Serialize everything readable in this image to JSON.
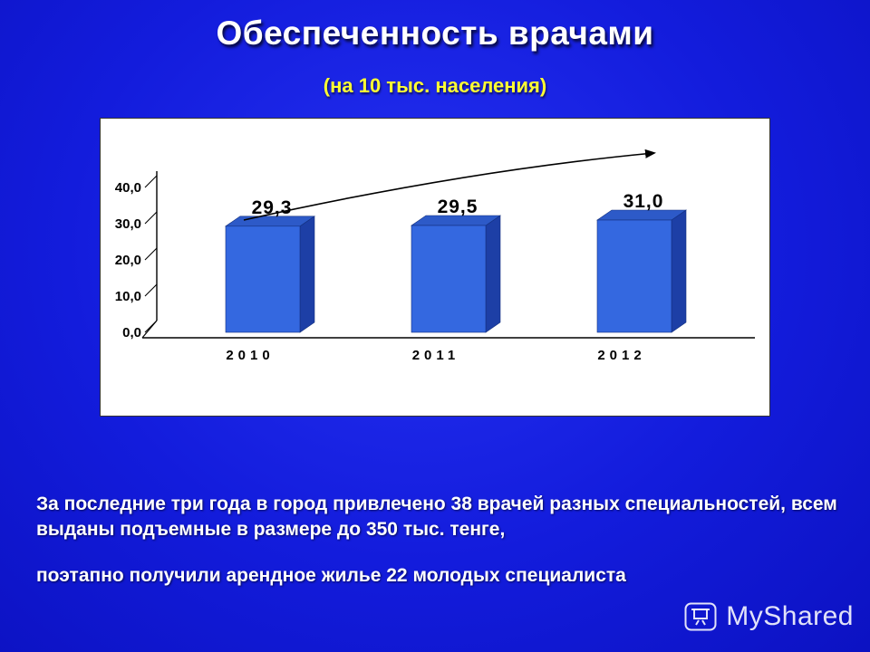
{
  "slide": {
    "title": "Обеспеченность врачами",
    "subtitle": "(на 10 тыс. населения)",
    "body": {
      "paragraph1": "За последние три года в город привлечено 38 врачей разных специальностей, всем выданы подъемные в размере до 350 тыс. тенге,",
      "paragraph2": "поэтапно получили арендное жилье 22 молодых специалиста"
    }
  },
  "chart_data": {
    "type": "bar",
    "style": "3d-column",
    "title": "",
    "xlabel": "",
    "ylabel": "",
    "categories": [
      "2010",
      "2011",
      "2012"
    ],
    "values": [
      29.3,
      29.5,
      31.0
    ],
    "data_labels": [
      "29,3",
      "29,5",
      "31,0"
    ],
    "y_ticks": [
      {
        "label": "40,0",
        "value": 40
      },
      {
        "label": "30,0",
        "value": 30
      },
      {
        "label": "20,0",
        "value": 20
      },
      {
        "label": "10,0",
        "value": 10
      },
      {
        "label": "0,0",
        "value": 0
      }
    ],
    "ylim": [
      0,
      40
    ],
    "grid": false,
    "legend": false,
    "annotations": [
      {
        "type": "trend-arrow",
        "direction": "up-right"
      }
    ],
    "colors": {
      "bar_front": "#3468e0",
      "bar_side": "#1d3fa6",
      "bar_top": "#2d5ac8",
      "bar_edge": "#13307f",
      "axis": "#000000",
      "plot_background": "#ffffff"
    }
  },
  "watermark": {
    "label": "MyShared",
    "icon": "projector-screen-icon"
  }
}
